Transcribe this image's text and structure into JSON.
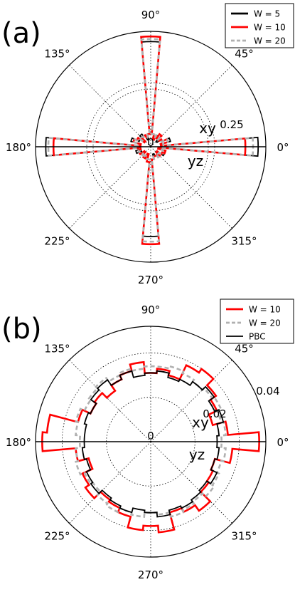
{
  "chart_data": [
    {
      "type": "polar-step",
      "panel_label": "(a)",
      "angle_labels": [
        "0°",
        "45°",
        "90°",
        "135°",
        "180°",
        "225°",
        "270°",
        "315°"
      ],
      "radial_tick_labels": [
        "0",
        "0.25"
      ],
      "radial_tick_values": [
        0,
        0.25
      ],
      "rmax": 0.45,
      "half_labels": {
        "upper": "xy",
        "lower": "yz"
      },
      "legend_position": "top-right",
      "grid": true,
      "series": [
        {
          "name": "W = 5",
          "color": "#000000",
          "style": "solid",
          "angles": [
            0,
            10,
            20,
            30,
            40,
            50,
            60,
            70,
            80,
            90,
            100,
            110,
            120,
            130,
            140,
            150,
            160,
            170,
            180,
            190,
            200,
            210,
            220,
            230,
            240,
            250,
            260,
            270,
            280,
            290,
            300,
            310,
            320,
            330,
            340,
            350
          ],
          "values": [
            0.42,
            0.04,
            0.08,
            0.05,
            0.03,
            0.06,
            0.05,
            0.03,
            0.05,
            0.41,
            0.05,
            0.03,
            0.05,
            0.06,
            0.03,
            0.05,
            0.08,
            0.04,
            0.41,
            0.05,
            0.06,
            0.04,
            0.03,
            0.04,
            0.05,
            0.03,
            0.06,
            0.35,
            0.05,
            0.03,
            0.04,
            0.05,
            0.03,
            0.06,
            0.05,
            0.04
          ]
        },
        {
          "name": "W = 10",
          "color": "#ff0000",
          "style": "solid",
          "angles": [
            0,
            10,
            20,
            30,
            40,
            50,
            60,
            70,
            80,
            90,
            100,
            110,
            120,
            130,
            140,
            150,
            160,
            170,
            180,
            190,
            200,
            210,
            220,
            230,
            240,
            250,
            260,
            270,
            280,
            290,
            300,
            310,
            320,
            330,
            340,
            350
          ],
          "values": [
            0.37,
            0.04,
            0.07,
            0.05,
            0.04,
            0.06,
            0.04,
            0.03,
            0.05,
            0.43,
            0.05,
            0.04,
            0.05,
            0.05,
            0.03,
            0.06,
            0.07,
            0.04,
            0.38,
            0.04,
            0.05,
            0.05,
            0.03,
            0.04,
            0.05,
            0.03,
            0.06,
            0.38,
            0.05,
            0.04,
            0.04,
            0.05,
            0.03,
            0.05,
            0.06,
            0.03
          ]
        },
        {
          "name": "W = 20",
          "color": "#b0b0b0",
          "style": "dashed",
          "angles": [
            0,
            10,
            20,
            30,
            40,
            50,
            60,
            70,
            80,
            90,
            100,
            110,
            120,
            130,
            140,
            150,
            160,
            170,
            180,
            190,
            200,
            210,
            220,
            230,
            240,
            250,
            260,
            270,
            280,
            290,
            300,
            310,
            320,
            330,
            340,
            350
          ],
          "values": [
            0.4,
            0.05,
            0.07,
            0.04,
            0.04,
            0.05,
            0.05,
            0.04,
            0.05,
            0.42,
            0.05,
            0.04,
            0.04,
            0.05,
            0.04,
            0.05,
            0.07,
            0.05,
            0.4,
            0.05,
            0.05,
            0.04,
            0.04,
            0.05,
            0.04,
            0.04,
            0.05,
            0.37,
            0.05,
            0.04,
            0.04,
            0.05,
            0.04,
            0.05,
            0.05,
            0.04
          ]
        }
      ]
    },
    {
      "type": "polar-step",
      "panel_label": "(b)",
      "angle_labels": [
        "0°",
        "45°",
        "90°",
        "135°",
        "180°",
        "225°",
        "270°",
        "315°"
      ],
      "radial_tick_labels": [
        "0",
        "0.02",
        "0.04"
      ],
      "radial_tick_values": [
        0,
        0.02,
        0.04
      ],
      "rmax": 0.052,
      "half_labels": {
        "upper": "xy",
        "lower": "yz"
      },
      "legend_position": "top-right",
      "grid": true,
      "series": [
        {
          "name": "W = 10",
          "color": "#ff0000",
          "style": "solid",
          "angles": [
            0,
            10,
            20,
            30,
            40,
            50,
            60,
            70,
            80,
            90,
            100,
            110,
            120,
            130,
            140,
            150,
            160,
            170,
            180,
            190,
            200,
            210,
            220,
            230,
            240,
            250,
            260,
            270,
            280,
            290,
            300,
            310,
            320,
            330,
            340,
            350
          ],
          "values": [
            0.049,
            0.035,
            0.029,
            0.033,
            0.036,
            0.04,
            0.038,
            0.031,
            0.033,
            0.031,
            0.036,
            0.033,
            0.031,
            0.028,
            0.031,
            0.03,
            0.034,
            0.047,
            0.049,
            0.034,
            0.029,
            0.034,
            0.036,
            0.032,
            0.033,
            0.035,
            0.04,
            0.038,
            0.041,
            0.033,
            0.035,
            0.038,
            0.032,
            0.031,
            0.03,
            0.037
          ]
        },
        {
          "name": "W = 20",
          "color": "#b0b0b0",
          "style": "dashed",
          "angles": [
            0,
            10,
            20,
            30,
            40,
            50,
            60,
            70,
            80,
            90,
            100,
            110,
            120,
            130,
            140,
            150,
            160,
            170,
            180,
            190,
            200,
            210,
            220,
            230,
            240,
            250,
            260,
            270,
            280,
            290,
            300,
            310,
            320,
            330,
            340,
            350
          ],
          "values": [
            0.032,
            0.034,
            0.033,
            0.035,
            0.034,
            0.033,
            0.034,
            0.035,
            0.034,
            0.034,
            0.033,
            0.034,
            0.033,
            0.035,
            0.034,
            0.033,
            0.035,
            0.034,
            0.032,
            0.034,
            0.035,
            0.033,
            0.032,
            0.034,
            0.035,
            0.033,
            0.034,
            0.032,
            0.033,
            0.035,
            0.034,
            0.033,
            0.035,
            0.034,
            0.033,
            0.034
          ]
        },
        {
          "name": "PBC",
          "color": "#000000",
          "style": "solid",
          "angles": [
            0,
            10,
            20,
            30,
            40,
            50,
            60,
            70,
            80,
            90,
            100,
            110,
            120,
            130,
            140,
            150,
            160,
            170,
            180,
            190,
            200,
            210,
            220,
            230,
            240,
            250,
            260,
            270,
            280,
            290,
            300,
            310,
            320,
            330,
            340,
            350
          ],
          "values": [
            0.03,
            0.031,
            0.034,
            0.032,
            0.035,
            0.033,
            0.031,
            0.03,
            0.032,
            0.031,
            0.03,
            0.033,
            0.031,
            0.034,
            0.033,
            0.03,
            0.031,
            0.03,
            0.03,
            0.031,
            0.03,
            0.032,
            0.033,
            0.031,
            0.032,
            0.033,
            0.031,
            0.032,
            0.034,
            0.032,
            0.033,
            0.032,
            0.031,
            0.033,
            0.03,
            0.031
          ]
        }
      ]
    }
  ]
}
